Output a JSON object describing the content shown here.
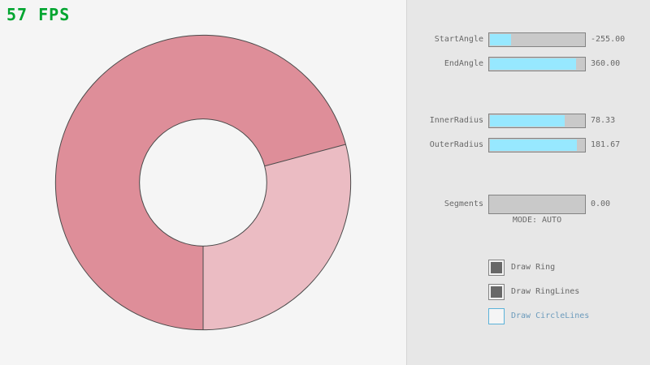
{
  "fps_label": "57 FPS",
  "colors": {
    "bg_left": "#f5f5f5",
    "bg_panel": "#e7e7e7",
    "divider": "#d5d5d5",
    "fps_green": "#00a52f",
    "ring_dark": "#de8e99",
    "ring_light": "#ebbcc3",
    "ring_line": "#4a4a4a",
    "slider_track": "#c9c9c9",
    "slider_fill": "#97e8ff",
    "control_border": "#838383",
    "text": "#686868",
    "check_fill": "#686868",
    "focus_border": "#5bb2d9",
    "focus_text": "#6c9bbc"
  },
  "panel": {
    "sliders": [
      {
        "label": "StartAngle",
        "value": "-255.00",
        "fill": 0.217
      },
      {
        "label": "EndAngle",
        "value": "360.00",
        "fill": 0.9
      },
      {
        "label": "InnerRadius",
        "value": "78.33",
        "fill": 0.783
      },
      {
        "label": "OuterRadius",
        "value": "181.67",
        "fill": 0.908
      },
      {
        "label": "Segments",
        "value": "0.00",
        "fill": 0.0
      }
    ],
    "mode_label": "MODE: AUTO",
    "checkboxes": [
      {
        "label": "Draw Ring",
        "checked": true,
        "focused": false
      },
      {
        "label": "Draw RingLines",
        "checked": true,
        "focused": false
      },
      {
        "label": "Draw CircleLines",
        "checked": false,
        "focused": true
      }
    ]
  }
}
